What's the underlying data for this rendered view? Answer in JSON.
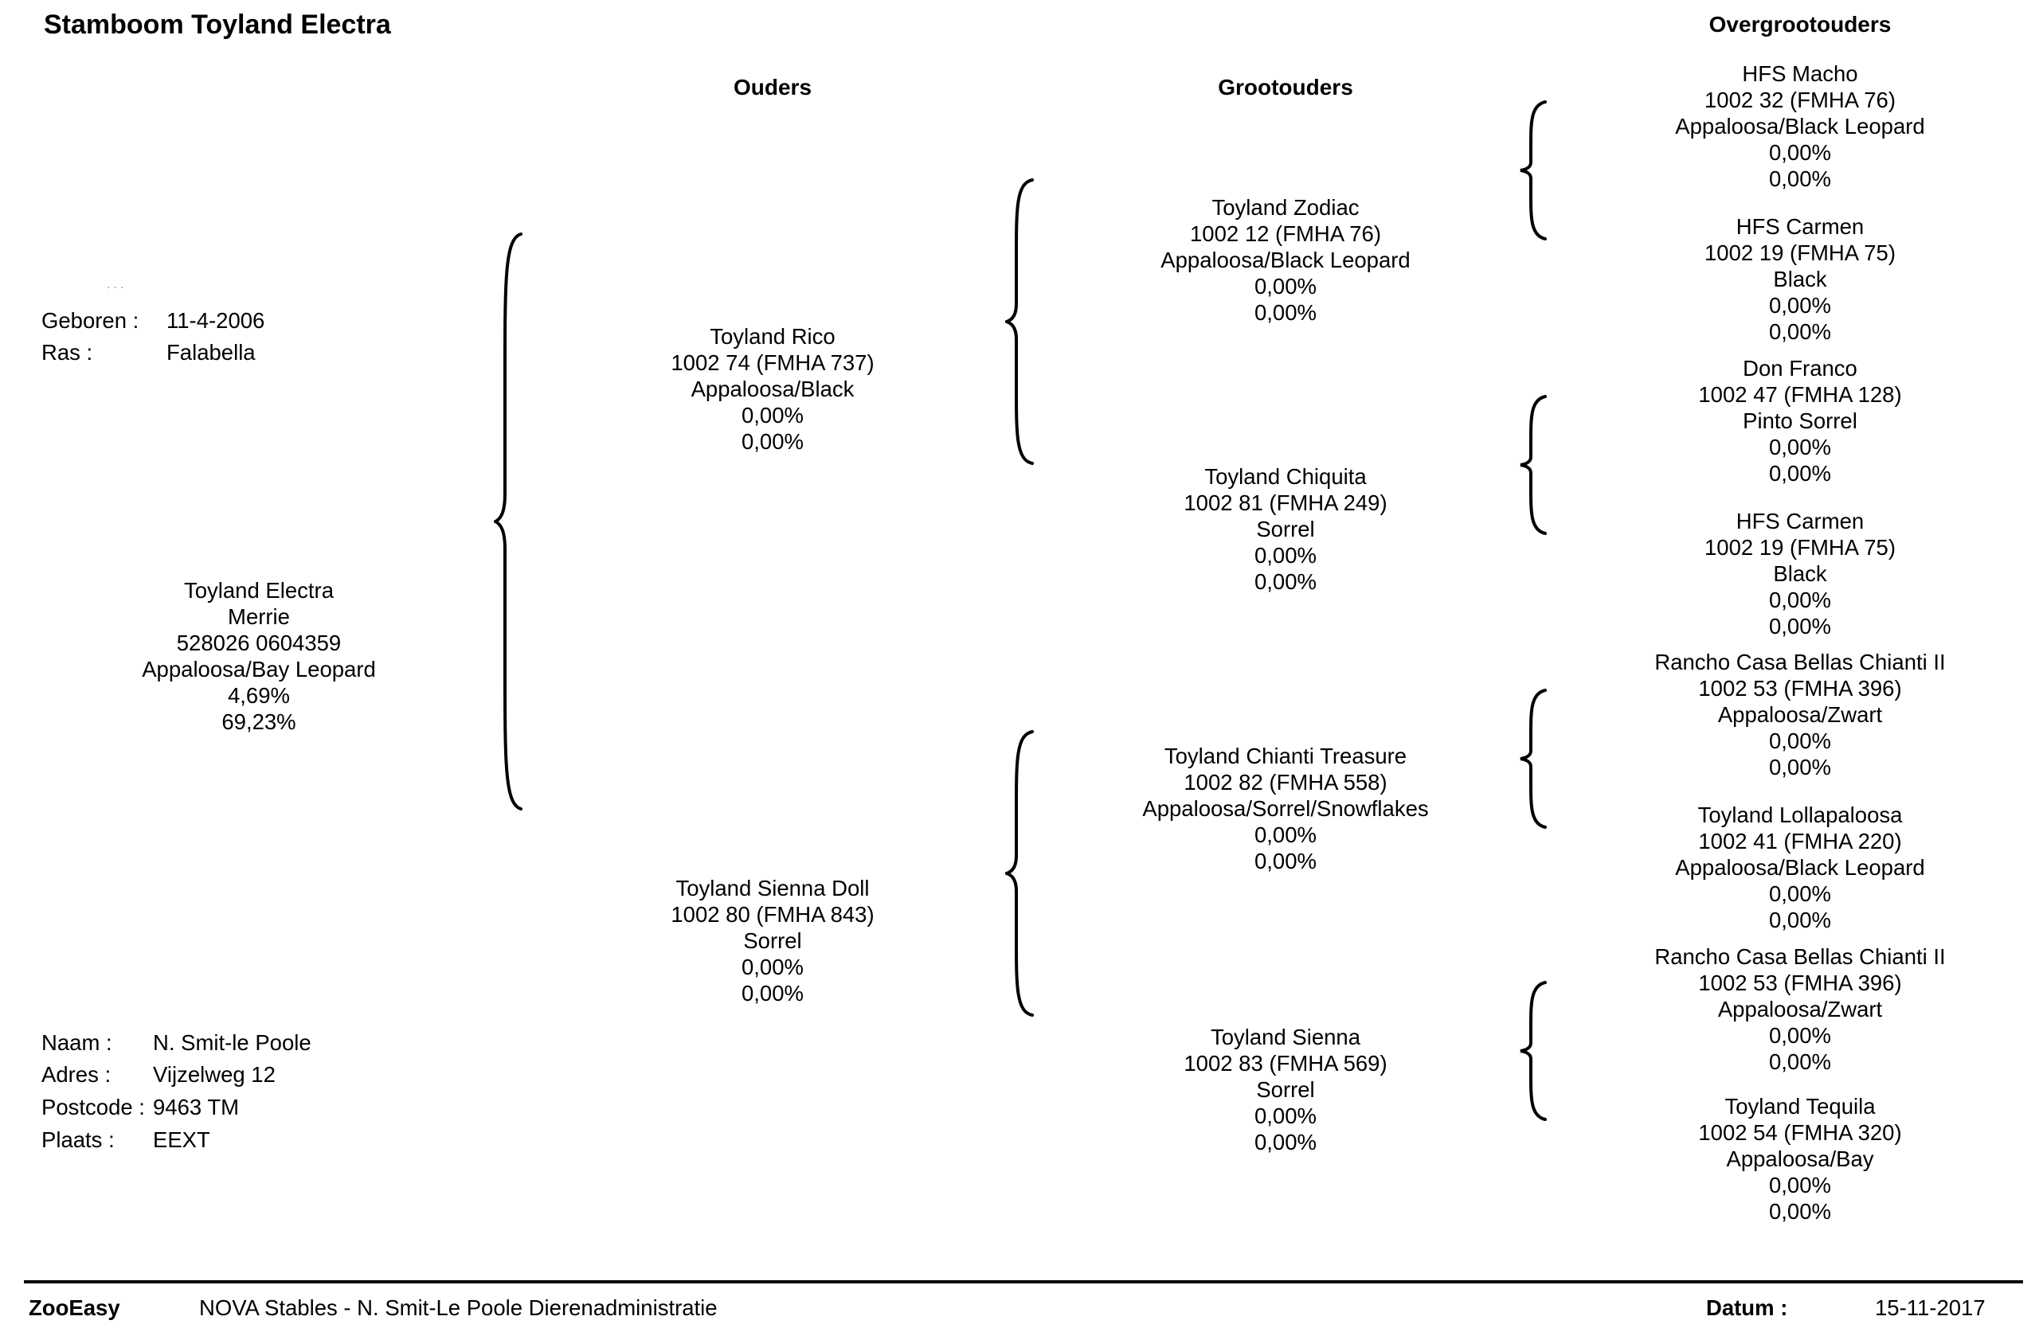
{
  "title": "Stamboom Toyland Electra",
  "headers": {
    "ouders": "Ouders",
    "grootouders": "Grootouders",
    "overgrootouders": "Overgrootouders"
  },
  "animal_info": {
    "geboren_label": "Geboren :",
    "geboren_value": "11-4-2006",
    "ras_label": "Ras :",
    "ras_value": "Falabella"
  },
  "subject": {
    "name": "Toyland Electra",
    "sex": "Merrie",
    "id": "528026 0604359",
    "color": "Appaloosa/Bay Leopard",
    "pct1": "4,69%",
    "pct2": "69,23%"
  },
  "parents": [
    {
      "name": "Toyland Rico",
      "id": "1002 74 (FMHA 737)",
      "color": "Appaloosa/Black",
      "pct1": "0,00%",
      "pct2": "0,00%"
    },
    {
      "name": "Toyland Sienna Doll",
      "id": "1002 80 (FMHA 843)",
      "color": "Sorrel",
      "pct1": "0,00%",
      "pct2": "0,00%"
    }
  ],
  "grandparents": [
    {
      "name": "Toyland Zodiac",
      "id": "1002 12 (FMHA 76)",
      "color": "Appaloosa/Black Leopard",
      "pct1": "0,00%",
      "pct2": "0,00%"
    },
    {
      "name": "Toyland Chiquita",
      "id": "1002 81 (FMHA 249)",
      "color": "Sorrel",
      "pct1": "0,00%",
      "pct2": "0,00%"
    },
    {
      "name": "Toyland Chianti Treasure",
      "id": "1002 82 (FMHA 558)",
      "color": "Appaloosa/Sorrel/Snowflakes",
      "pct1": "0,00%",
      "pct2": "0,00%"
    },
    {
      "name": "Toyland Sienna",
      "id": "1002 83 (FMHA 569)",
      "color": "Sorrel",
      "pct1": "0,00%",
      "pct2": "0,00%"
    }
  ],
  "great_grandparents": [
    {
      "name": "HFS Macho",
      "id": "1002 32 (FMHA 76)",
      "color": "Appaloosa/Black Leopard",
      "pct1": "0,00%",
      "pct2": "0,00%"
    },
    {
      "name": "HFS Carmen",
      "id": "1002 19 (FMHA 75)",
      "color": "Black",
      "pct1": "0,00%",
      "pct2": "0,00%"
    },
    {
      "name": "Don Franco",
      "id": "1002 47 (FMHA 128)",
      "color": "Pinto Sorrel",
      "pct1": "0,00%",
      "pct2": "0,00%"
    },
    {
      "name": "HFS Carmen",
      "id": "1002 19 (FMHA 75)",
      "color": "Black",
      "pct1": "0,00%",
      "pct2": "0,00%"
    },
    {
      "name": "Rancho Casa Bellas Chianti II",
      "id": "1002 53 (FMHA 396)",
      "color": "Appaloosa/Zwart",
      "pct1": "0,00%",
      "pct2": "0,00%"
    },
    {
      "name": "Toyland Lollapaloosa",
      "id": "1002 41 (FMHA 220)",
      "color": "Appaloosa/Black Leopard",
      "pct1": "0,00%",
      "pct2": "0,00%"
    },
    {
      "name": "Rancho Casa Bellas Chianti II",
      "id": "1002 53 (FMHA 396)",
      "color": "Appaloosa/Zwart",
      "pct1": "0,00%",
      "pct2": "0,00%"
    },
    {
      "name": "Toyland Tequila",
      "id": "1002 54 (FMHA 320)",
      "color": "Appaloosa/Bay",
      "pct1": "0,00%",
      "pct2": "0,00%"
    }
  ],
  "owner": {
    "naam_label": "Naam :",
    "naam_value": "N.  Smit-le Poole",
    "adres_label": "Adres :",
    "adres_value": "Vijzelweg 12",
    "postcode_label": "Postcode :",
    "postcode_value": "9463 TM",
    "plaats_label": "Plaats :",
    "plaats_value": "EEXT"
  },
  "footer": {
    "brand": "ZooEasy",
    "org": "NOVA Stables - N. Smit-Le Poole Dierenadministratie",
    "datum_label": "Datum :",
    "datum_value": "15-11-2017"
  }
}
